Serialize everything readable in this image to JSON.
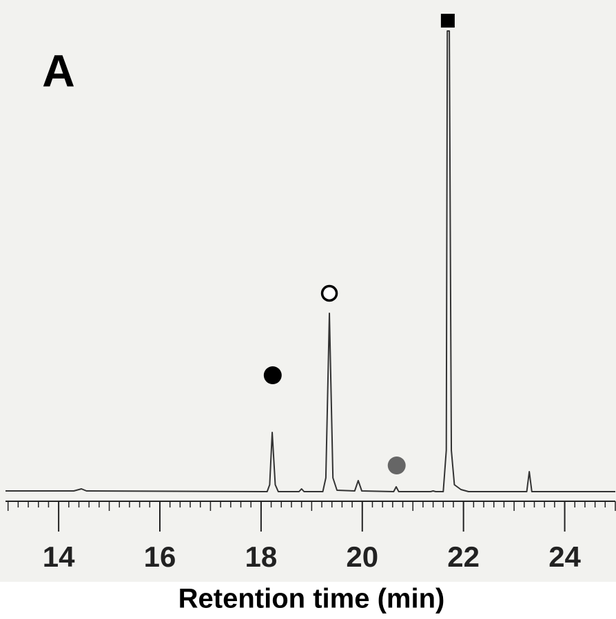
{
  "chart_data": {
    "type": "line",
    "panel_label": "A",
    "x_label": "Retention time (min)",
    "x": [
      12.95,
      14.3,
      14.45,
      14.55,
      18.12,
      18.17,
      18.22,
      18.28,
      18.34,
      18.75,
      18.8,
      18.85,
      19.22,
      19.28,
      19.35,
      19.42,
      19.5,
      19.85,
      19.92,
      19.99,
      20.62,
      20.67,
      20.72,
      21.35,
      21.4,
      21.45,
      21.6,
      21.66,
      21.68,
      21.72,
      21.76,
      21.82,
      21.95,
      22.1,
      23.25,
      23.3,
      23.35,
      25.0
    ],
    "values": [
      1,
      1,
      4,
      1,
      0,
      10,
      86,
      10,
      0,
      0,
      4,
      0,
      0,
      20,
      259,
      20,
      2,
      1,
      16,
      1,
      0,
      7,
      0,
      0,
      1,
      0,
      0,
      60,
      669,
      669,
      60,
      10,
      3,
      0,
      0,
      29,
      0,
      0
    ],
    "color": "#333333",
    "markers": [
      {
        "x": 18.23,
        "y": 169,
        "shape": "circle",
        "color": "#000000"
      },
      {
        "x": 19.35,
        "y": 288,
        "shape": "open-circle",
        "color": "#000000"
      },
      {
        "x": 20.68,
        "y": 38,
        "shape": "circle",
        "color": "#666666"
      },
      {
        "x": 21.69,
        "y": 684,
        "shape": "square",
        "color": "#000000"
      }
    ],
    "xlim": [
      12.95,
      25.0
    ],
    "ylim": [
      0,
      700
    ],
    "xticks": [
      14,
      16,
      18,
      20,
      22,
      24
    ],
    "xminor_step": 0.2
  }
}
